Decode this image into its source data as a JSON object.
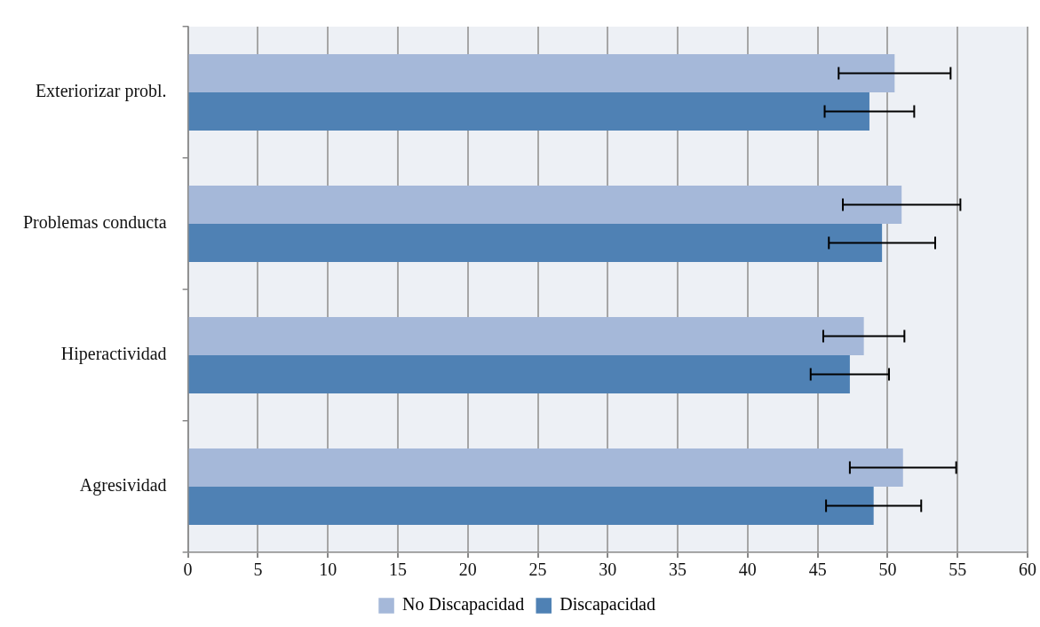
{
  "chart_data": {
    "type": "bar",
    "orientation": "horizontal",
    "categories": [
      "Exteriorizar probl.",
      "Problemas conducta",
      "Hiperactividad",
      "Agresividad"
    ],
    "series": [
      {
        "name": "No Discapacidad",
        "color": "#a5b8d9",
        "values": [
          50.5,
          51.0,
          48.3,
          51.1
        ],
        "errors": [
          4.0,
          4.2,
          2.9,
          3.8
        ]
      },
      {
        "name": "Discapacidad",
        "color": "#4f81b4",
        "values": [
          48.7,
          49.6,
          47.3,
          49.0
        ],
        "errors": [
          3.2,
          3.8,
          2.8,
          3.4
        ]
      }
    ],
    "xlim": [
      0,
      60
    ],
    "xticks": [
      0,
      5,
      10,
      15,
      20,
      25,
      30,
      35,
      40,
      45,
      50,
      55,
      60
    ],
    "grid": "x",
    "legend": "bottom"
  }
}
